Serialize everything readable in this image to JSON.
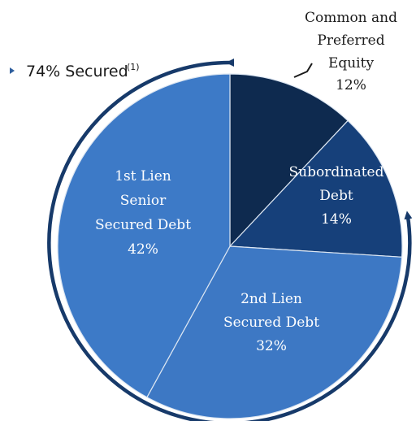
{
  "chart_data": {
    "type": "pie",
    "title": "",
    "slices": [
      {
        "label_lines": [
          "Common and",
          "Preferred",
          "Equity"
        ],
        "value_label": "12%",
        "value": 12,
        "color": "#0e2a4f"
      },
      {
        "label_lines": [
          "Subordinated",
          "Debt"
        ],
        "value_label": "14%",
        "value": 14,
        "color": "#16407a"
      },
      {
        "label_lines": [
          "2nd Lien",
          "Secured Debt"
        ],
        "value_label": "32%",
        "value": 32,
        "color": "#3d78c4"
      },
      {
        "label_lines": [
          "1st Lien",
          "Senior",
          "Secured Debt"
        ],
        "value_label": "42%",
        "value": 42,
        "color": "#3d7ac7"
      }
    ],
    "annotation": {
      "text": "74% Secured",
      "footnote": "(1)",
      "arrow_color": "#173a6a"
    },
    "legend": "none"
  }
}
